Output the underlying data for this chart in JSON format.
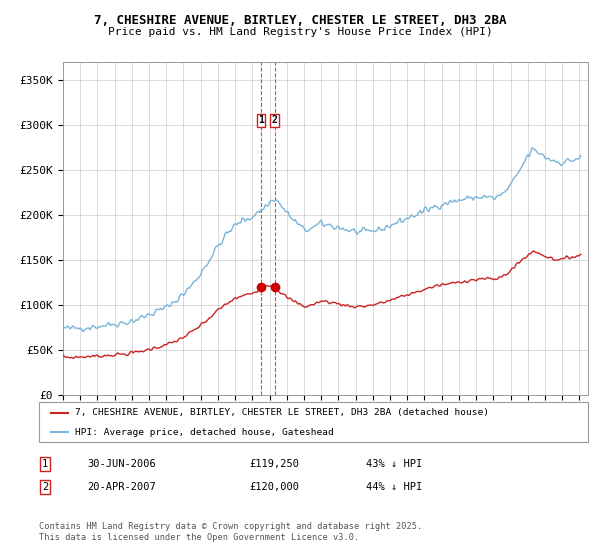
{
  "title_line1": "7, CHESHIRE AVENUE, BIRTLEY, CHESTER LE STREET, DH3 2BA",
  "title_line2": "Price paid vs. HM Land Registry's House Price Index (HPI)",
  "ylabel_ticks": [
    "£0",
    "£50K",
    "£100K",
    "£150K",
    "£200K",
    "£250K",
    "£300K",
    "£350K"
  ],
  "ytick_values": [
    0,
    50000,
    100000,
    150000,
    200000,
    250000,
    300000,
    350000
  ],
  "ylim": [
    0,
    370000
  ],
  "xlim_start": 1995.0,
  "xlim_end": 2025.5,
  "hpi_color": "#7ab4d8",
  "price_color": "#cc2222",
  "marker_color": "#cc0000",
  "vline_color": "#cc2222",
  "background_color": "#ffffff",
  "grid_color": "#cccccc",
  "legend_label_red": "7, CHESHIRE AVENUE, BIRTLEY, CHESTER LE STREET, DH3 2BA (detached house)",
  "legend_label_blue": "HPI: Average price, detached house, Gateshead",
  "sale1_label": "1",
  "sale1_date": "30-JUN-2006",
  "sale1_price": "£119,250",
  "sale1_hpi": "43% ↓ HPI",
  "sale1_x": 2006.5,
  "sale1_y": 119250,
  "sale2_label": "2",
  "sale2_date": "20-APR-2007",
  "sale2_price": "£120,000",
  "sale2_hpi": "44% ↓ HPI",
  "sale2_x": 2007.29,
  "sale2_y": 120000,
  "footnote": "Contains HM Land Registry data © Crown copyright and database right 2025.\nThis data is licensed under the Open Government Licence v3.0."
}
